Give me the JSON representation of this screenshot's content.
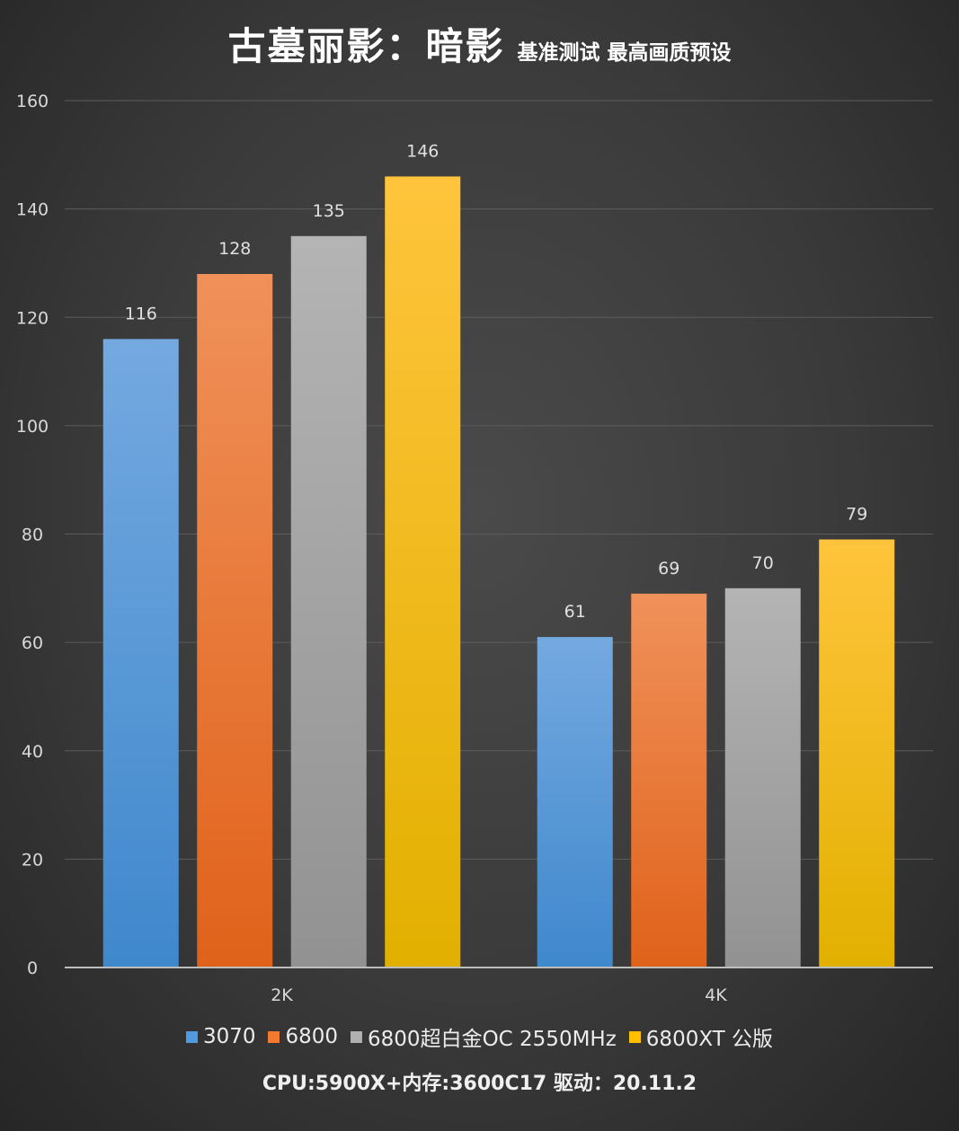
{
  "title": {
    "main": "古墓丽影：暗影",
    "sub": "基准测试 最高画质预设"
  },
  "footer": "CPU:5900X+内存:3600C17 驱动：20.11.2",
  "chart_data": {
    "type": "bar",
    "title": "古墓丽影：暗影 基准测试 最高画质预设",
    "xlabel": "",
    "ylabel": "",
    "categories": [
      "2K",
      "4K"
    ],
    "ylim": [
      0,
      160
    ],
    "yticks": [
      0,
      20,
      40,
      60,
      80,
      100,
      120,
      140,
      160
    ],
    "grid": true,
    "legend_position": "bottom",
    "series": [
      {
        "name": "3070",
        "values": [
          116,
          61
        ],
        "color_top": "#74a9e0",
        "color_bottom": "#3f88cc",
        "swatch": "#4f9ae0"
      },
      {
        "name": "6800",
        "values": [
          128,
          69
        ],
        "color_top": "#f0915a",
        "color_bottom": "#e0621a",
        "swatch": "#f07a30"
      },
      {
        "name": "6800超白金OC 2550MHz",
        "values": [
          135,
          70
        ],
        "color_top": "#b4b4b4",
        "color_bottom": "#929292",
        "swatch": "#b0b0b0"
      },
      {
        "name": "6800XT 公版",
        "values": [
          146,
          79
        ],
        "color_top": "#ffc43c",
        "color_bottom": "#e2b000",
        "swatch": "#ffc000"
      }
    ]
  }
}
